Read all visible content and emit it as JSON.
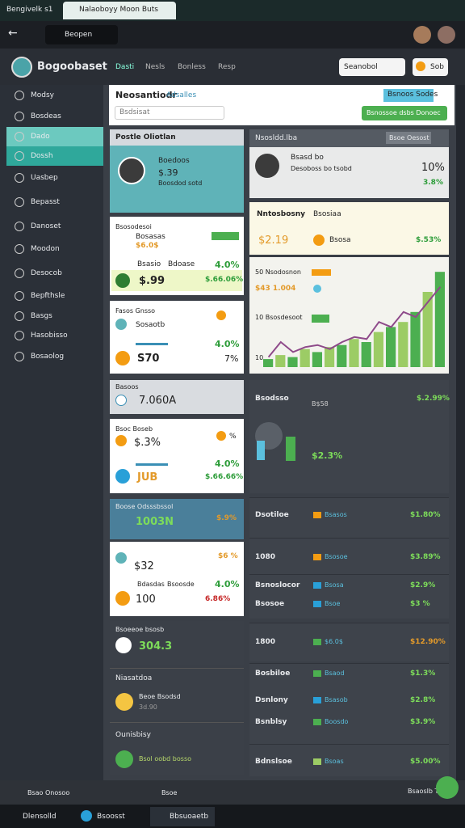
{
  "browser": {
    "tabs": [
      "Bengivelk s1",
      "Nalaoboyy Moon Buts"
    ],
    "search": "Beopen"
  },
  "header": {
    "brand": "Bogoobaset",
    "tabs": [
      "Dasti",
      "Nesls",
      "Bonless",
      "Resp"
    ],
    "dropdown": "Seanobol",
    "button": "Sob"
  },
  "sidebar": {
    "items": [
      "Modsy",
      "Bosdeas",
      "Dado",
      "Dossh",
      "Uasbep",
      "Bepasst",
      "Danoset",
      "Moodon",
      "Desocob",
      "Bepfthsle",
      "Basgs",
      "Hasobisso",
      "Bosaolog"
    ],
    "active": [
      2,
      3
    ]
  },
  "toolbar": {
    "title": "Neosantiodr",
    "link": "Adsalles",
    "input": "Bsdsisat",
    "badge": "Bsnoos Sodes",
    "button": "Bsnossoe dsbs Donoec"
  },
  "left": {
    "c1": {
      "header": "Postle Oliotlan",
      "name": "Boedoos",
      "value": "$.39",
      "sub": "Boosdod sotd"
    },
    "c2": {
      "title": "Bsosodesoi",
      "a": "Bosasas",
      "b": "$6.0$",
      "c": "Bsasio",
      "d": "Bdoase",
      "e": "4.0%",
      "f": "$.99",
      "g": "$.66.06%"
    },
    "c3": {
      "title": "Fasos Gnsso",
      "a": "Sosaotb",
      "b": "4.0%",
      "c": "S70",
      "d": "7%"
    },
    "c4": {
      "title": "Basoos",
      "value": "7.060A"
    },
    "c5": {
      "title": "Bsoc Boseb",
      "a": "$.3%",
      "b": "%",
      "c": "4.0%",
      "d": "JUB",
      "e": "$.66.66%"
    },
    "c6": {
      "title": "Boose Odsssbssol",
      "a": "1003N",
      "b": "$.9%"
    },
    "c7": {
      "a": "$32",
      "b": "$6 %",
      "c": "Bdasdas",
      "d": "Bsoosde",
      "e": "4.0%",
      "f": "100",
      "g": "6.86%"
    },
    "c8": {
      "title": "Bsoeeoe bsosb",
      "value": "304.3"
    },
    "c9": {
      "title": "Niasatdoa",
      "a": "Beoe Bsodsd",
      "b": "3d.90"
    },
    "c10": {
      "title": "Ounisbisy",
      "a": "Bsol oobd bosso"
    }
  },
  "right": {
    "p1": {
      "title": "Nsosldd.lba",
      "badge": "Bsoe Oesost",
      "a": "Bsasd bo",
      "b": "Desoboss bo tsobd",
      "c": "10%",
      "d": "3.8%"
    },
    "p2": {
      "title": "Nntosbosny",
      "tag": "Bsosiaa",
      "a": "$2.19",
      "b": "Bsosa",
      "c": "$.53%"
    },
    "chart": {
      "l1": "50 Nsodosnon",
      "l2": "$43 1.004",
      "l3": "10 Bsosdesoot",
      "l4": "10",
      "ylim": [
        0,
        100
      ],
      "bars": [
        8,
        12,
        10,
        18,
        15,
        20,
        22,
        28,
        25,
        35,
        40,
        45,
        55,
        75,
        95
      ],
      "line": [
        10,
        25,
        15,
        20,
        22,
        18,
        25,
        30,
        28,
        45,
        40,
        55,
        50,
        65,
        80
      ],
      "bar_colors": [
        "#4caf50",
        "#9ccc65"
      ],
      "line_color": "#8e4a8a"
    },
    "p3": {
      "title": "Bsodsso",
      "a": "B$58",
      "b": "$.2.99%",
      "c": "$2.3%"
    },
    "rows": [
      [
        "Dsotiloe",
        "Bsasos",
        "$1.80%"
      ],
      [
        "1080",
        "Bsosoe",
        "$3.89%"
      ],
      [
        "Bsnoslocor",
        "Bsosa",
        "$2.9%"
      ],
      [
        "Bsosoe",
        "Bsoe",
        "$3 %"
      ],
      [
        "1800",
        "$6.0$",
        "$12.90%"
      ],
      [
        "Bosbiloe",
        "Bsaod",
        "$1.3%"
      ],
      [
        "Dsnlony",
        "Bsasob",
        "$2.8%"
      ],
      [
        "Bsnblsy",
        "Boosdo",
        "$3.9%"
      ],
      [
        "Bdnslsoe",
        "Bsoas",
        "$5.00%"
      ]
    ]
  },
  "footer": {
    "a": "Bsao Onosoo",
    "b": "Bsoe",
    "c": "Bsaoslb Totos"
  },
  "taskbar": {
    "start": "Dlensolld",
    "app1": "Bsoosst",
    "app2": "Bbsuoaetb"
  }
}
